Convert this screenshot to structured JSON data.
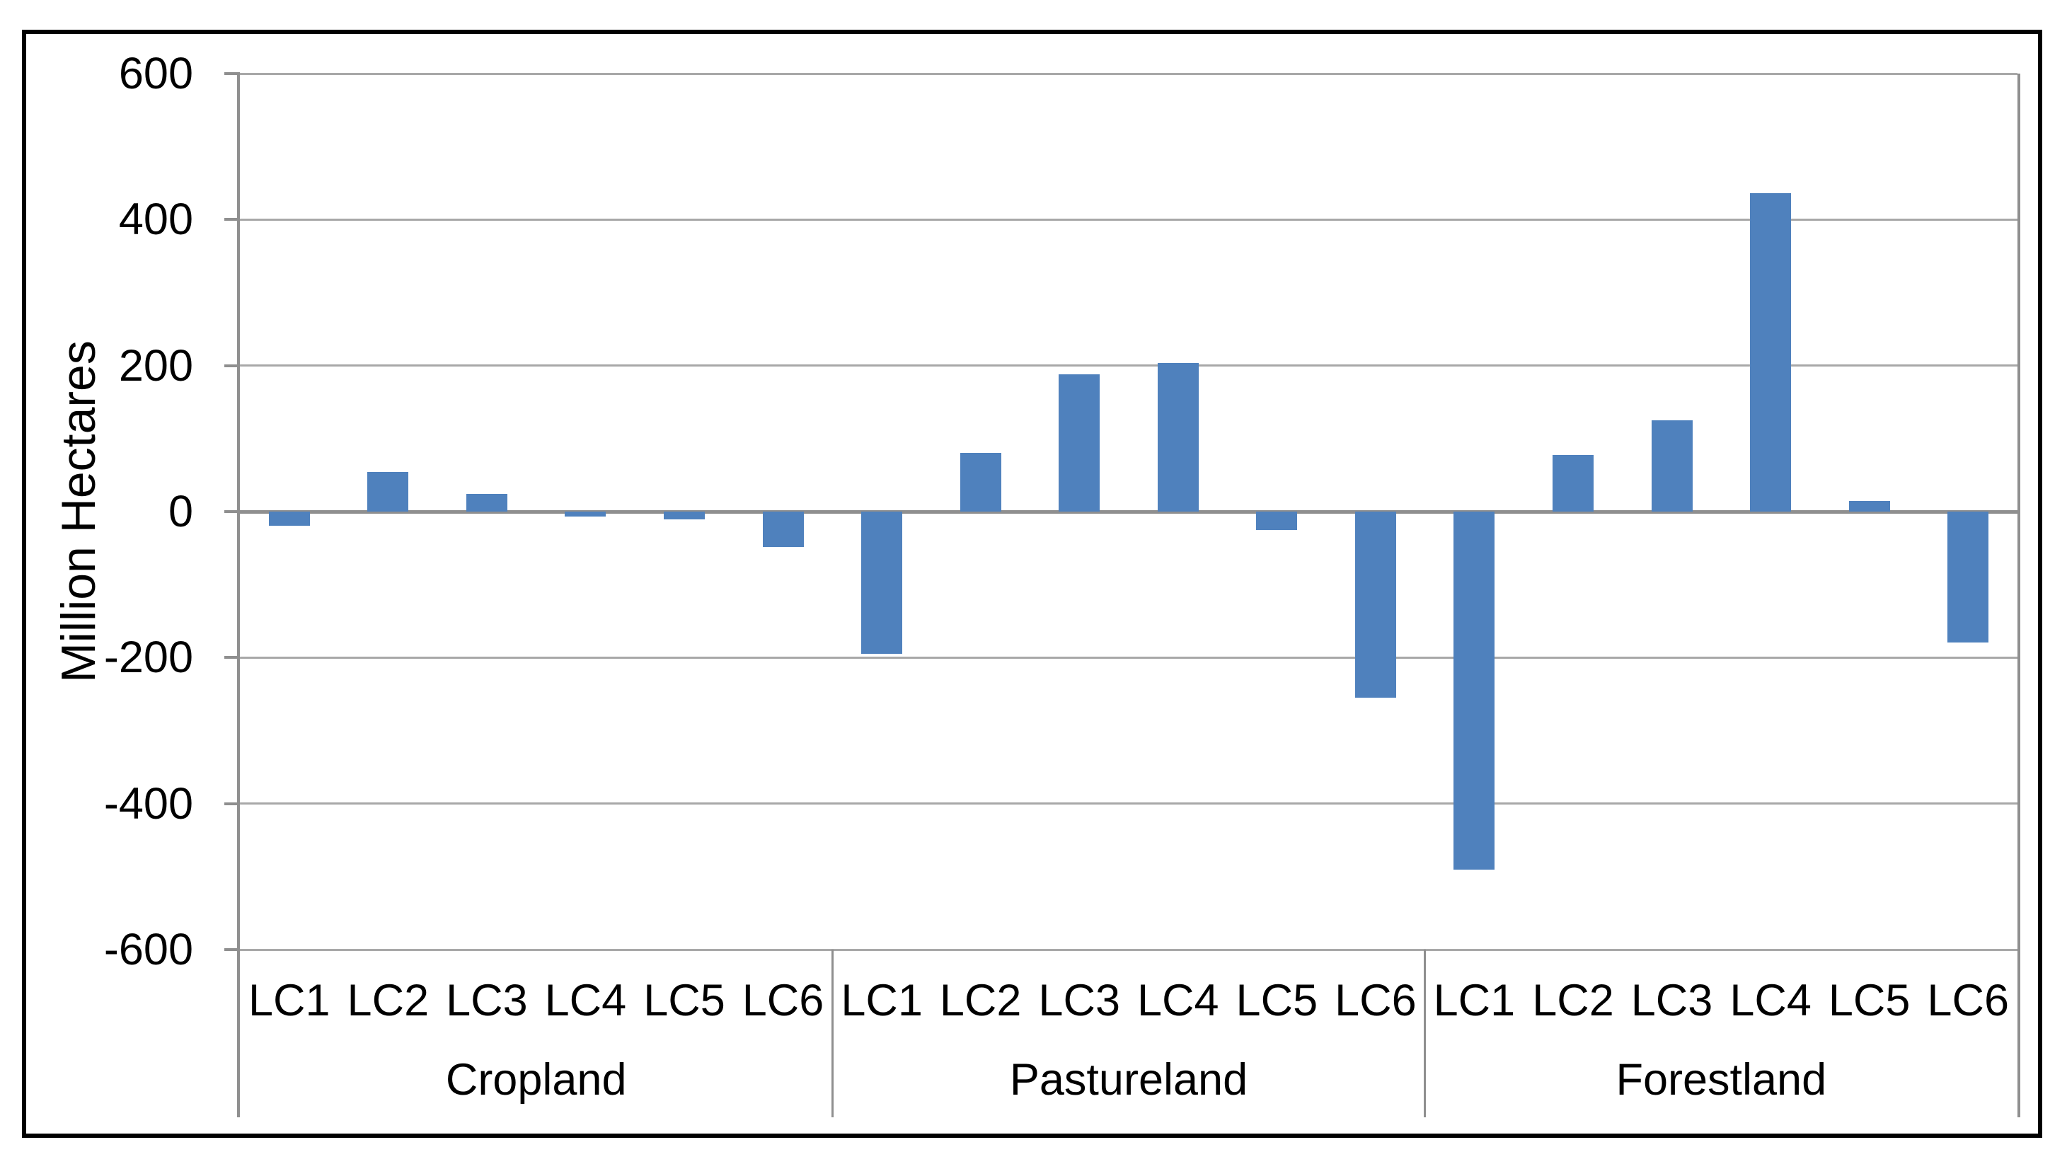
{
  "chart_data": {
    "type": "bar",
    "title": "",
    "xlabel": "",
    "ylabel": "Million Hectares",
    "ylim": [
      -600,
      600
    ],
    "ytick_interval": 200,
    "yticks": [
      600,
      400,
      200,
      0,
      -200,
      -400,
      -600
    ],
    "ytick_labels": [
      "600",
      "400",
      "200",
      "0",
      "-200",
      "-400",
      "-600"
    ],
    "grid": true,
    "legend": false,
    "categories": [
      "LC1",
      "LC2",
      "LC3",
      "LC4",
      "LC5",
      "LC6"
    ],
    "groups": [
      {
        "label": "Cropland",
        "values": [
          -19,
          54,
          24,
          -7,
          -11,
          -48
        ]
      },
      {
        "label": "Pastureland",
        "values": [
          -195,
          80,
          188,
          204,
          -25,
          -255
        ]
      },
      {
        "label": "Forestland",
        "values": [
          -490,
          78,
          125,
          436,
          15,
          -179
        ]
      }
    ],
    "colors": {
      "bar": "#4F81BD",
      "gridline": "#A8A8A8",
      "axis": "#8F8F8F",
      "text": "#000000",
      "frame_border": "#000000",
      "background": "#FFFFFF"
    }
  }
}
